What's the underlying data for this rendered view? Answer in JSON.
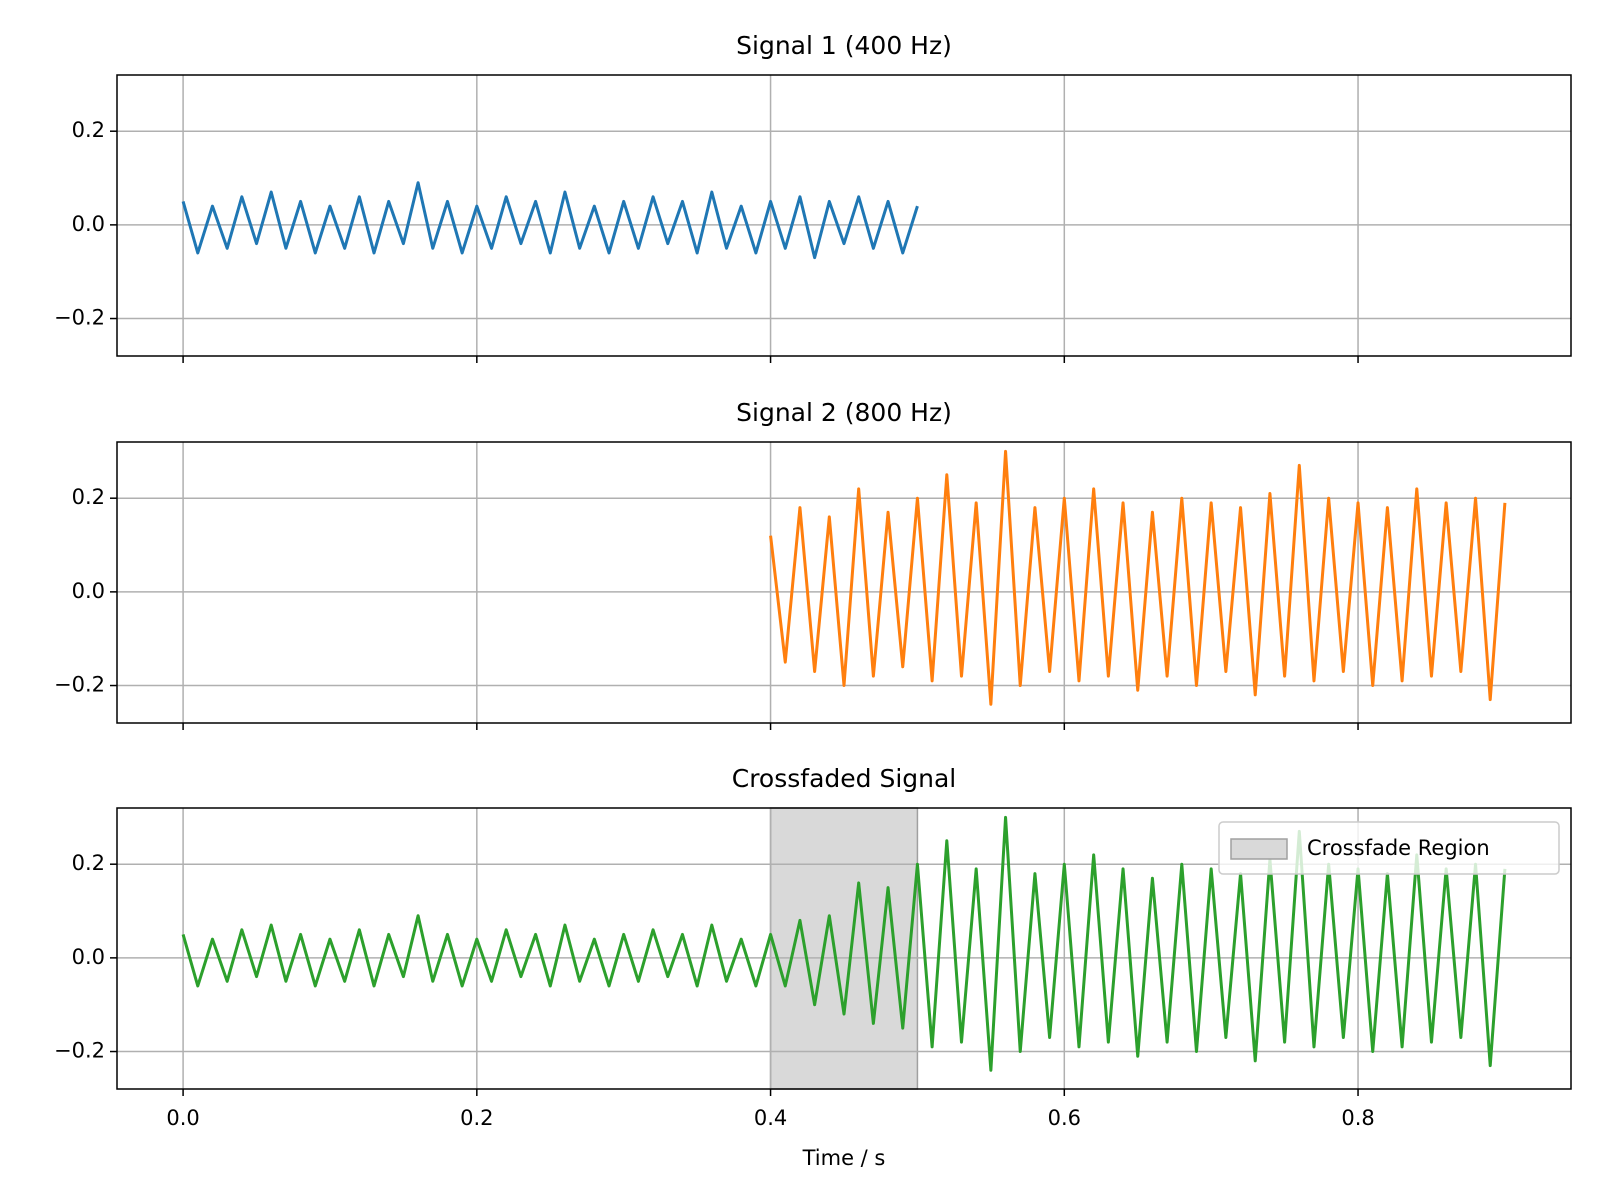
{
  "chart_data": [
    {
      "type": "line",
      "title": "Signal 1 (400 Hz)",
      "x": [
        0,
        0.01,
        0.02,
        0.03,
        0.04,
        0.05,
        0.06,
        0.07,
        0.08,
        0.09,
        0.1,
        0.11,
        0.12,
        0.13,
        0.14,
        0.15,
        0.16,
        0.17,
        0.18,
        0.19,
        0.2,
        0.21,
        0.22,
        0.23,
        0.24,
        0.25,
        0.26,
        0.27,
        0.28,
        0.29,
        0.3,
        0.31,
        0.32,
        0.33,
        0.34,
        0.35,
        0.36,
        0.37,
        0.38,
        0.39,
        0.4,
        0.41,
        0.42,
        0.43,
        0.44,
        0.45,
        0.46,
        0.47,
        0.48,
        0.49,
        0.5
      ],
      "series": [
        {
          "color": "#1f77b4",
          "values": [
            0.05,
            -0.06,
            0.04,
            -0.05,
            0.06,
            -0.04,
            0.07,
            -0.05,
            0.05,
            -0.06,
            0.04,
            -0.05,
            0.06,
            -0.06,
            0.05,
            -0.04,
            0.09,
            -0.05,
            0.05,
            -0.06,
            0.04,
            -0.05,
            0.06,
            -0.04,
            0.05,
            -0.06,
            0.07,
            -0.05,
            0.04,
            -0.06,
            0.05,
            -0.05,
            0.06,
            -0.04,
            0.05,
            -0.06,
            0.07,
            -0.05,
            0.04,
            -0.06,
            0.05,
            -0.05,
            0.06,
            -0.07,
            0.05,
            -0.04,
            0.06,
            -0.05,
            0.05,
            -0.06,
            0.04
          ]
        }
      ],
      "xlim": [
        -0.045,
        0.945
      ],
      "ylim": [
        -0.28,
        0.32
      ],
      "xticks": [
        0,
        0.2,
        0.4,
        0.6,
        0.8
      ],
      "xtick_labels": false,
      "yticks": [
        {
          "value": -0.2,
          "label": "−0.2"
        },
        {
          "value": 0,
          "label": "0.0"
        },
        {
          "value": 0.2,
          "label": "0.2"
        }
      ],
      "grid": true
    },
    {
      "type": "line",
      "title": "Signal 2 (800 Hz)",
      "x": [
        0.4,
        0.41,
        0.42,
        0.43,
        0.44,
        0.45,
        0.46,
        0.47,
        0.48,
        0.49,
        0.5,
        0.51,
        0.52,
        0.53,
        0.54,
        0.55,
        0.56,
        0.57,
        0.58,
        0.59,
        0.6,
        0.61,
        0.62,
        0.63,
        0.64,
        0.65,
        0.66,
        0.67,
        0.68,
        0.69,
        0.7,
        0.71,
        0.72,
        0.73,
        0.74,
        0.75,
        0.76,
        0.77,
        0.78,
        0.79,
        0.8,
        0.81,
        0.82,
        0.83,
        0.84,
        0.85,
        0.86,
        0.87,
        0.88,
        0.89,
        0.9
      ],
      "series": [
        {
          "color": "#ff7f0e",
          "values": [
            0.12,
            -0.15,
            0.18,
            -0.17,
            0.16,
            -0.2,
            0.22,
            -0.18,
            0.17,
            -0.16,
            0.2,
            -0.19,
            0.25,
            -0.18,
            0.19,
            -0.24,
            0.3,
            -0.2,
            0.18,
            -0.17,
            0.2,
            -0.19,
            0.22,
            -0.18,
            0.19,
            -0.21,
            0.17,
            -0.18,
            0.2,
            -0.2,
            0.19,
            -0.17,
            0.18,
            -0.22,
            0.21,
            -0.18,
            0.27,
            -0.19,
            0.2,
            -0.17,
            0.19,
            -0.2,
            0.18,
            -0.19,
            0.22,
            -0.18,
            0.19,
            -0.17,
            0.2,
            -0.23,
            0.19
          ]
        }
      ],
      "xlim": [
        -0.045,
        0.945
      ],
      "ylim": [
        -0.28,
        0.32
      ],
      "xticks": [
        0,
        0.2,
        0.4,
        0.6,
        0.8
      ],
      "xtick_labels": false,
      "yticks": [
        {
          "value": -0.2,
          "label": "−0.2"
        },
        {
          "value": 0,
          "label": "0.0"
        },
        {
          "value": 0.2,
          "label": "0.2"
        }
      ],
      "grid": true
    },
    {
      "type": "line",
      "title": "Crossfaded Signal",
      "xlabel": "Time / s",
      "x": [
        0,
        0.01,
        0.02,
        0.03,
        0.04,
        0.05,
        0.06,
        0.07,
        0.08,
        0.09,
        0.1,
        0.11,
        0.12,
        0.13,
        0.14,
        0.15,
        0.16,
        0.17,
        0.18,
        0.19,
        0.2,
        0.21,
        0.22,
        0.23,
        0.24,
        0.25,
        0.26,
        0.27,
        0.28,
        0.29,
        0.3,
        0.31,
        0.32,
        0.33,
        0.34,
        0.35,
        0.36,
        0.37,
        0.38,
        0.39,
        0.4,
        0.41,
        0.42,
        0.43,
        0.44,
        0.45,
        0.46,
        0.47,
        0.48,
        0.49,
        0.5,
        0.51,
        0.52,
        0.53,
        0.54,
        0.55,
        0.56,
        0.57,
        0.58,
        0.59,
        0.6,
        0.61,
        0.62,
        0.63,
        0.64,
        0.65,
        0.66,
        0.67,
        0.68,
        0.69,
        0.7,
        0.71,
        0.72,
        0.73,
        0.74,
        0.75,
        0.76,
        0.77,
        0.78,
        0.79,
        0.8,
        0.81,
        0.82,
        0.83,
        0.84,
        0.85,
        0.86,
        0.87,
        0.88,
        0.89,
        0.9
      ],
      "series": [
        {
          "color": "#2ca02c",
          "values": [
            0.05,
            -0.06,
            0.04,
            -0.05,
            0.06,
            -0.04,
            0.07,
            -0.05,
            0.05,
            -0.06,
            0.04,
            -0.05,
            0.06,
            -0.06,
            0.05,
            -0.04,
            0.09,
            -0.05,
            0.05,
            -0.06,
            0.04,
            -0.05,
            0.06,
            -0.04,
            0.05,
            -0.06,
            0.07,
            -0.05,
            0.04,
            -0.06,
            0.05,
            -0.05,
            0.06,
            -0.04,
            0.05,
            -0.06,
            0.07,
            -0.05,
            0.04,
            -0.06,
            0.05,
            -0.06,
            0.08,
            -0.1,
            0.09,
            -0.12,
            0.16,
            -0.14,
            0.15,
            -0.15,
            0.2,
            -0.19,
            0.25,
            -0.18,
            0.19,
            -0.24,
            0.3,
            -0.2,
            0.18,
            -0.17,
            0.2,
            -0.19,
            0.22,
            -0.18,
            0.19,
            -0.21,
            0.17,
            -0.18,
            0.2,
            -0.2,
            0.19,
            -0.17,
            0.18,
            -0.22,
            0.21,
            -0.18,
            0.27,
            -0.19,
            0.2,
            -0.17,
            0.19,
            -0.2,
            0.18,
            -0.19,
            0.22,
            -0.18,
            0.19,
            -0.17,
            0.2,
            -0.23,
            0.19
          ]
        }
      ],
      "span": {
        "x": [
          0.4,
          0.5
        ],
        "label": "Crossfade Region",
        "color": "#d9d9d9",
        "edgecolor": "#a0a0a0"
      },
      "legend": "upper right",
      "xlim": [
        -0.045,
        0.945
      ],
      "ylim": [
        -0.28,
        0.32
      ],
      "xticks": [
        {
          "value": 0,
          "label": "0.0"
        },
        0.2,
        0.4,
        0.6,
        0.8
      ],
      "xtick_labels": true,
      "yticks": [
        {
          "value": -0.2,
          "label": "−0.2"
        },
        {
          "value": 0,
          "label": "0.0"
        },
        {
          "value": 0.2,
          "label": "0.2"
        }
      ],
      "grid": true
    }
  ]
}
